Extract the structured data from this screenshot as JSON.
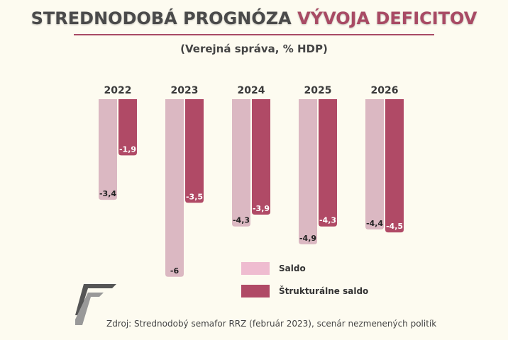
{
  "title_part1": "STREDNODOBÁ PROGNÓZA",
  "title_part2": "VÝVOJA DEFICITOV",
  "subtitle": "(Verejná správa, % HDP)",
  "source": "Zdroj: Strednodobý semafor RRZ (február 2023), scenár nezmenených politík",
  "chart_data": {
    "type": "bar",
    "title": "STREDNODOBÁ PROGNÓZA VÝVOJA DEFICITOV",
    "subtitle": "(Verejná správa, % HDP)",
    "categories": [
      "2022",
      "2023",
      "2024",
      "2025",
      "2026"
    ],
    "series": [
      {
        "name": "Saldo",
        "values": [
          -3.4,
          -6,
          -4.3,
          -4.9,
          -4.4
        ],
        "labels": [
          "-3,4",
          "-6",
          "-4,3",
          "-4,9",
          "-4,4"
        ],
        "color": "#dbb8c2",
        "legend_color": "#efbcd0"
      },
      {
        "name": "Štrukturálne saldo",
        "values": [
          -1.9,
          -3.5,
          -3.9,
          -4.3,
          -4.5
        ],
        "labels": [
          "-1,9",
          "-3,5",
          "-3,9",
          "-4,3",
          "-4,5"
        ],
        "color": "#b04a66"
      }
    ],
    "ylim": [
      -6,
      0
    ],
    "legend": "bottom-right"
  }
}
